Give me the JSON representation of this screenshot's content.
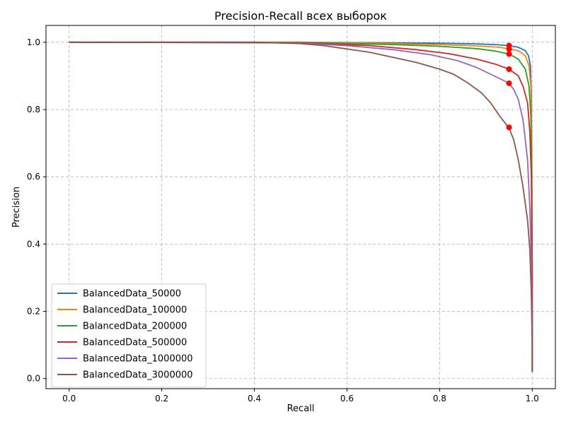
{
  "chart_data": {
    "type": "line",
    "title": "Precision-Recall всех выборок",
    "xlabel": "Recall",
    "ylabel": "Precision",
    "xlim": [
      -0.05,
      1.05
    ],
    "ylim": [
      -0.03,
      1.05
    ],
    "xticks": [
      "0.0",
      "0.2",
      "0.4",
      "0.6",
      "0.8",
      "1.0"
    ],
    "yticks": [
      "0.0",
      "0.2",
      "0.4",
      "0.6",
      "0.8",
      "1.0"
    ],
    "grid": true,
    "legend_position": "lower-left",
    "marker_color": "#ff0000",
    "series": [
      {
        "name": "BalancedData_50000",
        "color": "#1f77b4",
        "points": [
          [
            0.0,
            1.0
          ],
          [
            0.5,
            1.0
          ],
          [
            0.7,
            0.998
          ],
          [
            0.8,
            0.997
          ],
          [
            0.88,
            0.995
          ],
          [
            0.92,
            0.993
          ],
          [
            0.95,
            0.99
          ],
          [
            0.97,
            0.985
          ],
          [
            0.985,
            0.975
          ],
          [
            0.992,
            0.96
          ],
          [
            0.996,
            0.93
          ],
          [
            0.998,
            0.85
          ],
          [
            0.999,
            0.6
          ],
          [
            1.0,
            0.2
          ],
          [
            1.0,
            0.02
          ]
        ],
        "marker": [
          0.95,
          0.99
        ]
      },
      {
        "name": "BalancedData_100000",
        "color": "#ff7f0e",
        "points": [
          [
            0.0,
            1.0
          ],
          [
            0.5,
            1.0
          ],
          [
            0.7,
            0.996
          ],
          [
            0.8,
            0.993
          ],
          [
            0.88,
            0.989
          ],
          [
            0.93,
            0.985
          ],
          [
            0.95,
            0.98
          ],
          [
            0.97,
            0.975
          ],
          [
            0.985,
            0.96
          ],
          [
            0.993,
            0.93
          ],
          [
            0.997,
            0.87
          ],
          [
            0.999,
            0.7
          ],
          [
            1.0,
            0.3
          ],
          [
            1.0,
            0.02
          ]
        ],
        "marker": [
          0.95,
          0.98
        ]
      },
      {
        "name": "BalancedData_200000",
        "color": "#2ca02c",
        "points": [
          [
            0.0,
            1.0
          ],
          [
            0.5,
            0.999
          ],
          [
            0.7,
            0.993
          ],
          [
            0.8,
            0.988
          ],
          [
            0.88,
            0.981
          ],
          [
            0.92,
            0.974
          ],
          [
            0.95,
            0.965
          ],
          [
            0.97,
            0.95
          ],
          [
            0.985,
            0.92
          ],
          [
            0.993,
            0.87
          ],
          [
            0.997,
            0.78
          ],
          [
            0.999,
            0.6
          ],
          [
            1.0,
            0.3
          ],
          [
            1.0,
            0.02
          ]
        ],
        "marker": [
          0.95,
          0.965
        ]
      },
      {
        "name": "BalancedData_500000",
        "color": "#d62728",
        "points": [
          [
            0.0,
            1.0
          ],
          [
            0.5,
            0.998
          ],
          [
            0.65,
            0.99
          ],
          [
            0.75,
            0.978
          ],
          [
            0.82,
            0.966
          ],
          [
            0.88,
            0.95
          ],
          [
            0.92,
            0.935
          ],
          [
            0.95,
            0.92
          ],
          [
            0.97,
            0.9
          ],
          [
            0.98,
            0.87
          ],
          [
            0.99,
            0.82
          ],
          [
            0.995,
            0.73
          ],
          [
            0.998,
            0.6
          ],
          [
            1.0,
            0.3
          ],
          [
            1.0,
            0.02
          ]
        ],
        "marker": [
          0.95,
          0.92
        ]
      },
      {
        "name": "BalancedData_1000000",
        "color": "#9467bd",
        "points": [
          [
            0.0,
            1.0
          ],
          [
            0.4,
            1.0
          ],
          [
            0.5,
            0.997
          ],
          [
            0.6,
            0.99
          ],
          [
            0.7,
            0.978
          ],
          [
            0.78,
            0.963
          ],
          [
            0.84,
            0.945
          ],
          [
            0.88,
            0.925
          ],
          [
            0.91,
            0.905
          ],
          [
            0.94,
            0.885
          ],
          [
            0.95,
            0.878
          ],
          [
            0.96,
            0.86
          ],
          [
            0.97,
            0.83
          ],
          [
            0.98,
            0.77
          ],
          [
            0.99,
            0.65
          ],
          [
            0.995,
            0.5
          ],
          [
            0.998,
            0.35
          ],
          [
            1.0,
            0.15
          ],
          [
            1.0,
            0.02
          ]
        ],
        "marker": [
          0.95,
          0.878
        ]
      },
      {
        "name": "BalancedData_3000000",
        "color": "#8c564b",
        "points": [
          [
            0.0,
            1.0
          ],
          [
            0.4,
            1.0
          ],
          [
            0.5,
            0.996
          ],
          [
            0.55,
            0.99
          ],
          [
            0.6,
            0.98
          ],
          [
            0.65,
            0.97
          ],
          [
            0.7,
            0.955
          ],
          [
            0.75,
            0.94
          ],
          [
            0.8,
            0.92
          ],
          [
            0.83,
            0.905
          ],
          [
            0.86,
            0.88
          ],
          [
            0.89,
            0.85
          ],
          [
            0.91,
            0.82
          ],
          [
            0.93,
            0.78
          ],
          [
            0.95,
            0.745
          ],
          [
            0.96,
            0.71
          ],
          [
            0.97,
            0.65
          ],
          [
            0.98,
            0.57
          ],
          [
            0.99,
            0.47
          ],
          [
            0.995,
            0.38
          ],
          [
            0.998,
            0.25
          ],
          [
            1.0,
            0.1
          ],
          [
            1.0,
            0.02
          ]
        ],
        "marker": [
          0.95,
          0.747
        ]
      }
    ]
  }
}
